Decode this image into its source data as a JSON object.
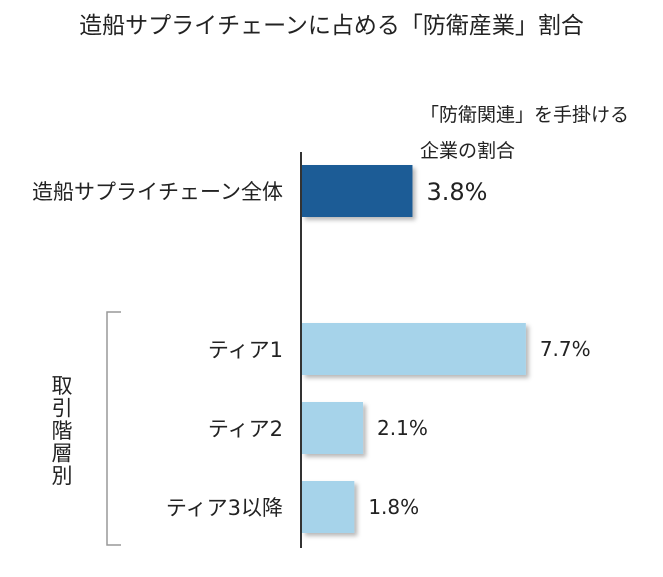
{
  "chart_data": {
    "type": "bar",
    "orientation": "horizontal",
    "title": "造船サプライチェーンに占める「防衛産業」割合",
    "xlabel": "",
    "ylabel": "",
    "categories": [
      "造船サプライチェーン全体",
      "ティア1",
      "ティア2",
      "ティア3以降"
    ],
    "values": [
      3.8,
      7.7,
      2.1,
      1.8
    ],
    "value_labels": [
      "3.8%",
      "7.7%",
      "2.1%",
      "1.8%"
    ],
    "unit": "%",
    "xlim": [
      0,
      8.6
    ],
    "grid": false,
    "series_annotation": [
      "「防衛関連」を手掛ける",
      "企業の割合"
    ],
    "group_label": "取引階層別",
    "group_members": [
      "ティア1",
      "ティア2",
      "ティア3以降"
    ],
    "colors": {
      "highlight": "#1a5b96",
      "default": "#a6d3ea",
      "axis": "#333333",
      "bracket": "#999999"
    }
  }
}
